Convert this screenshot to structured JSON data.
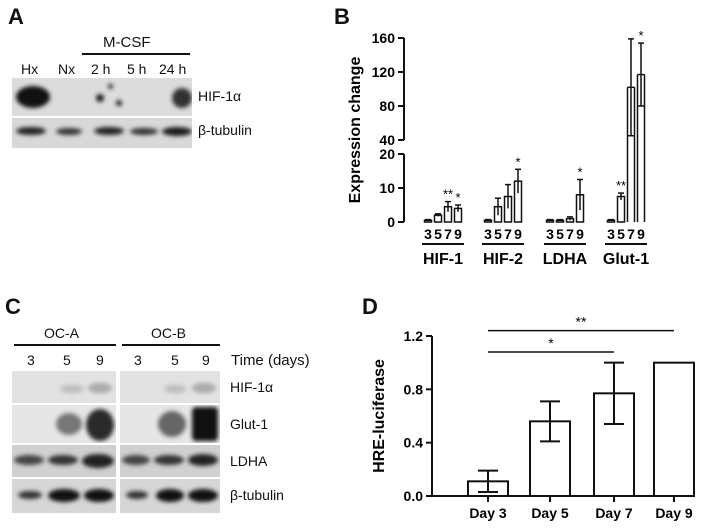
{
  "panels": {
    "a": "A",
    "b": "B",
    "c": "C",
    "d": "D"
  },
  "panel_a": {
    "treatment": "M-CSF",
    "lanes": [
      "Hx",
      "Nx",
      "2 h",
      "5 h",
      "24 h"
    ],
    "rows": [
      "HIF-1α",
      "β-tubulin"
    ]
  },
  "panel_c": {
    "groups": [
      "OC-A",
      "OC-B"
    ],
    "time_label": "Time (days)",
    "lanes": [
      "3",
      "5",
      "9",
      "3",
      "5",
      "9"
    ],
    "rows": [
      "HIF-1α",
      "Glut-1",
      "LDHA",
      "β-tubulin"
    ]
  },
  "chart_data": [
    {
      "type": "bar",
      "panel": "B",
      "ylabel": "Expression change",
      "groups": [
        "HIF-1",
        "HIF-2",
        "LDHA",
        "Glut-1"
      ],
      "x_tick_labels": [
        "3",
        "5",
        "7",
        "9"
      ],
      "y_ticks_lower": [
        0,
        10,
        20
      ],
      "y_ticks_upper": [
        40,
        80,
        120,
        160
      ],
      "broken_axis": {
        "lower": [
          0,
          20
        ],
        "upper": [
          40,
          160
        ]
      },
      "series": [
        {
          "group": "HIF-1",
          "days": [
            3,
            5,
            7,
            9
          ],
          "values": [
            0.5,
            2,
            4.5,
            4
          ],
          "errors": [
            0.2,
            0.4,
            1.5,
            1.0
          ],
          "sig": [
            "",
            "",
            "**",
            "*"
          ]
        },
        {
          "group": "HIF-2",
          "days": [
            3,
            5,
            7,
            9
          ],
          "values": [
            0.5,
            4.5,
            7.5,
            12
          ],
          "errors": [
            0.2,
            2.5,
            3.5,
            3.5
          ],
          "sig": [
            "",
            "",
            "",
            "*"
          ]
        },
        {
          "group": "LDHA",
          "days": [
            3,
            5,
            7,
            9
          ],
          "values": [
            0.5,
            0.5,
            1,
            8
          ],
          "errors": [
            0.2,
            0.2,
            0.5,
            4.5
          ],
          "sig": [
            "",
            "",
            "",
            "*"
          ]
        },
        {
          "group": "Glut-1",
          "days": [
            3,
            5,
            7,
            9
          ],
          "values": [
            0.5,
            7.5,
            102,
            117
          ],
          "errors": [
            0.2,
            1.0,
            57,
            37
          ],
          "sig": [
            "",
            "**",
            "",
            "*"
          ]
        }
      ]
    },
    {
      "type": "bar",
      "panel": "D",
      "ylabel": "HRE-luciferase",
      "categories": [
        "Day 3",
        "Day 5",
        "Day 7",
        "Day 9"
      ],
      "values": [
        0.11,
        0.56,
        0.77,
        1.0
      ],
      "errors": [
        0.08,
        0.15,
        0.23,
        0
      ],
      "ylim": [
        0,
        1.2
      ],
      "yticks": [
        "0.0",
        "0.4",
        "0.8",
        "1.2"
      ],
      "significance": [
        {
          "from": "Day 3",
          "to": "Day 7",
          "label": "*"
        },
        {
          "from": "Day 3",
          "to": "Day 9",
          "label": "**"
        }
      ]
    }
  ]
}
